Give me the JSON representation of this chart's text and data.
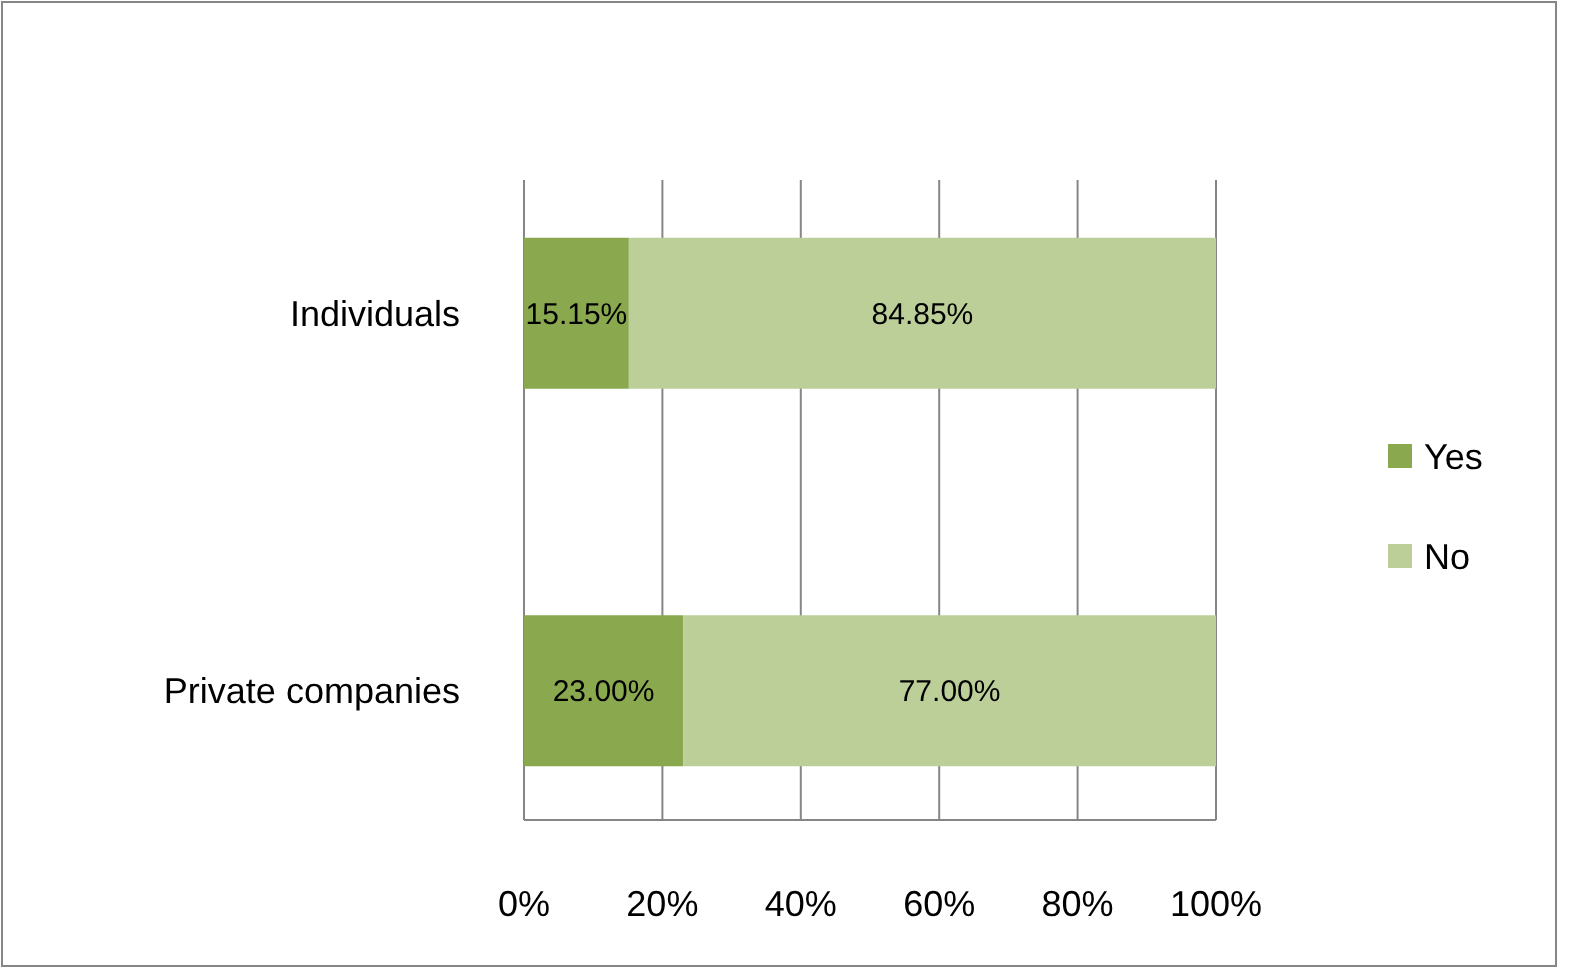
{
  "chart_data": {
    "type": "bar",
    "orientation": "horizontal",
    "stacked": true,
    "categories": [
      "Individuals",
      "Private companies"
    ],
    "series": [
      {
        "name": "Yes",
        "color": "#8aa94f",
        "values": [
          15.15,
          23.0
        ],
        "value_labels": [
          "15.15%",
          "23.00%"
        ]
      },
      {
        "name": "No",
        "color": "#bccf98",
        "values": [
          84.85,
          77.0
        ],
        "value_labels": [
          "84.85%",
          "77.00%"
        ]
      }
    ],
    "xlim": [
      0,
      100
    ],
    "xticks": [
      {
        "value": 0,
        "label": "0%"
      },
      {
        "value": 20,
        "label": "20%"
      },
      {
        "value": 40,
        "label": "40%"
      },
      {
        "value": 60,
        "label": "60%"
      },
      {
        "value": 80,
        "label": "80%"
      },
      {
        "value": 100,
        "label": "100%"
      }
    ],
    "grid": "x",
    "legend": "right"
  }
}
